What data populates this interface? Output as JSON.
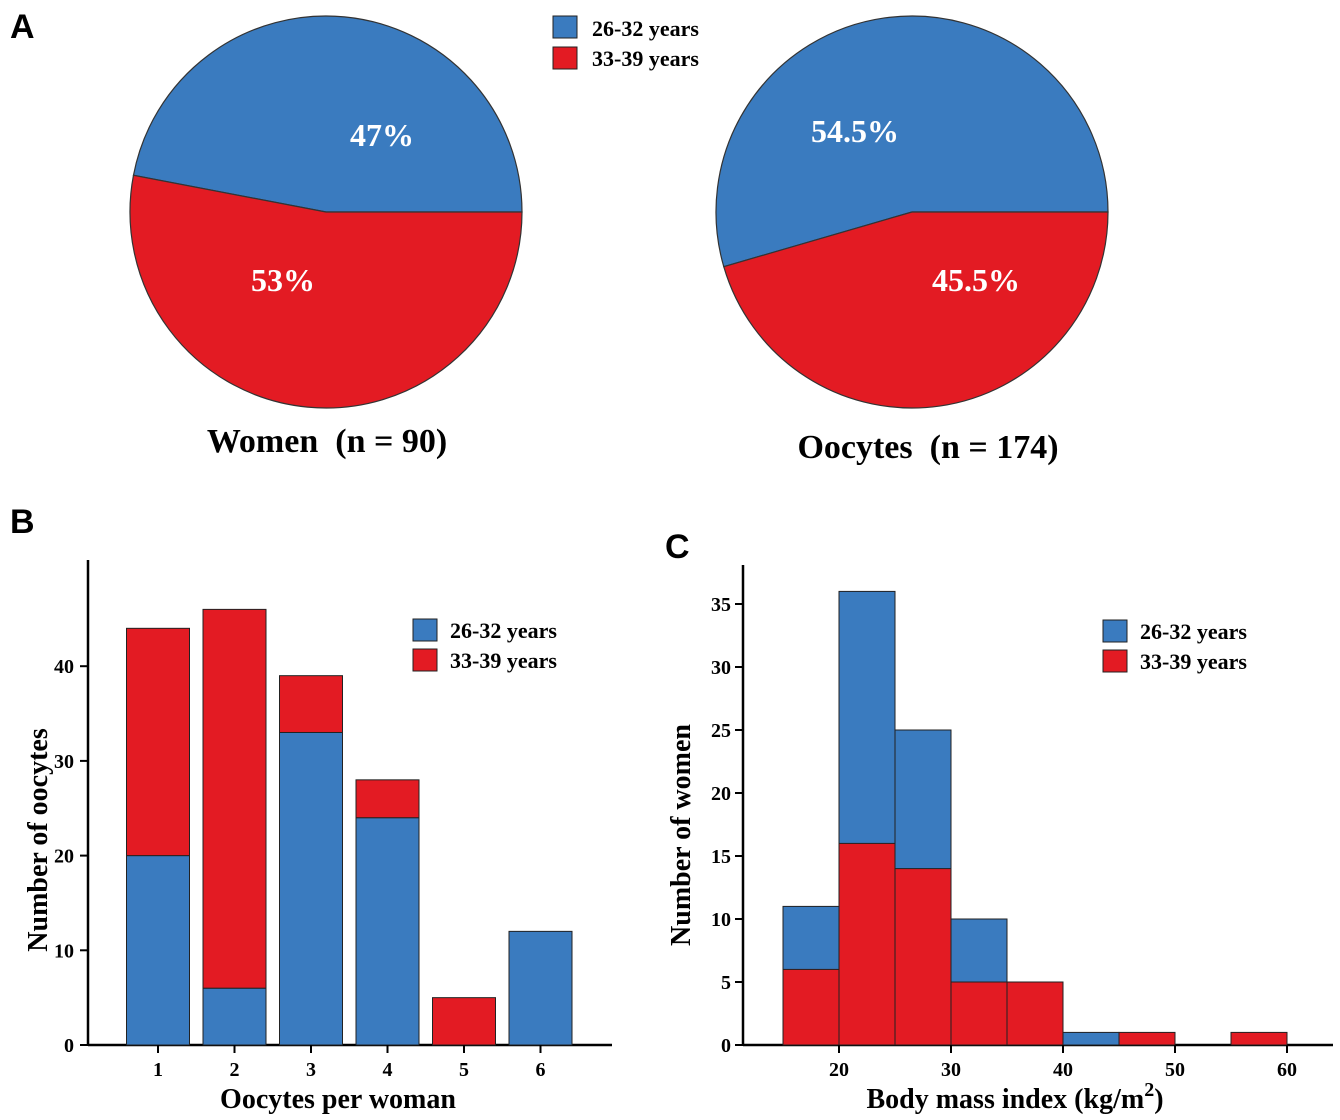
{
  "colors": {
    "blue": "#3a7bbf",
    "red": "#e31b23",
    "axis": "#000000"
  },
  "panels": {
    "a": "A",
    "b": "B",
    "c": "C"
  },
  "chart_data": [
    {
      "type": "pie",
      "panel": "A",
      "title": "Women  (n = 90)",
      "legend": [
        "26-32 years",
        "33-39 years"
      ],
      "slices": [
        {
          "name": "26-32 years",
          "value": 47,
          "label": "47%"
        },
        {
          "name": "33-39 years",
          "value": 53,
          "label": "53%"
        }
      ]
    },
    {
      "type": "pie",
      "panel": "A",
      "title": "Oocytes  (n = 174)",
      "slices": [
        {
          "name": "26-32 years",
          "value": 54.5,
          "label": "54.5%"
        },
        {
          "name": "33-39 years",
          "value": 45.5,
          "label": "45.5%"
        }
      ]
    },
    {
      "type": "bar",
      "panel": "B",
      "stacked": true,
      "categories": [
        "1",
        "2",
        "3",
        "4",
        "5",
        "6"
      ],
      "series": [
        {
          "name": "26-32 years",
          "values": [
            20,
            6,
            33,
            24,
            0,
            12
          ]
        },
        {
          "name": "33-39 years",
          "values": [
            24,
            40,
            6,
            4,
            5,
            0
          ]
        }
      ],
      "xlabel": "Oocytes per woman",
      "ylabel": "Number of oocytes",
      "yticks": [
        0,
        10,
        20,
        30,
        40
      ],
      "ylim": [
        0,
        50
      ],
      "legend": [
        "26-32 years",
        "33-39 years"
      ],
      "legend_position": "top-right"
    },
    {
      "type": "bar",
      "panel": "C",
      "histogram": true,
      "bin_edges": [
        15,
        20,
        25,
        30,
        35,
        40,
        45,
        50,
        55,
        60
      ],
      "series": [
        {
          "name": "26-32 years",
          "values": [
            11,
            36,
            25,
            10,
            0,
            1,
            0,
            0,
            0
          ],
          "note_values_are_bar_tops": true
        },
        {
          "name": "33-39 years",
          "values": [
            6,
            16,
            14,
            5,
            5,
            0,
            1,
            0,
            1
          ]
        }
      ],
      "xlabel": "Body mass index  (kg/m",
      "xlabel_sup": "2",
      "xlabel_end": ")",
      "ylabel": "Number of women",
      "xticks": [
        20,
        30,
        40,
        50,
        60
      ],
      "yticks": [
        0,
        5,
        10,
        15,
        20,
        25,
        30,
        35
      ],
      "xlim": [
        10,
        62
      ],
      "ylim": [
        0,
        38
      ],
      "legend": [
        "26-32 years",
        "33-39 years"
      ],
      "legend_position": "top-right"
    }
  ]
}
